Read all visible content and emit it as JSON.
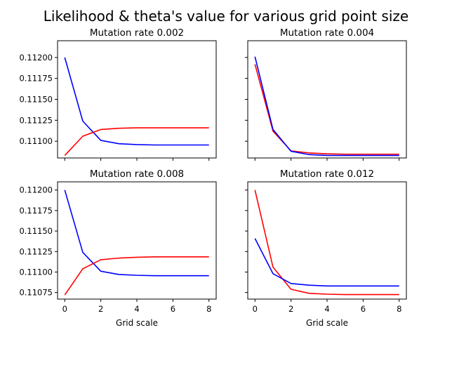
{
  "figure": {
    "title": "Likelihood & theta's value for various grid point size"
  },
  "chart_data": [
    {
      "type": "line",
      "title": "Mutation rate 0.002",
      "xlabel": "",
      "ylabel": "",
      "x": [
        0,
        1,
        2,
        3,
        4,
        5,
        6,
        7,
        8
      ],
      "xticks": [
        0,
        2,
        4,
        6,
        8
      ],
      "xlim": [
        -0.4,
        8.4
      ],
      "ylim": [
        1.1108,
        1.1122
      ],
      "yticks": [
        "0.11100",
        "0.11125",
        "0.11150",
        "0.11175",
        "0.11200"
      ],
      "ytick_values": [
        1.111,
        1.11125,
        1.1115,
        1.11175,
        1.112
      ],
      "show_ytick_labels": true,
      "show_xtick_labels": false,
      "series": [
        {
          "color": "#0000ff",
          "values": [
            1.112,
            1.11124,
            1.11101,
            1.11097,
            1.11096,
            1.110955,
            1.110955,
            1.110955,
            1.110955
          ]
        },
        {
          "color": "#ff0000",
          "values": [
            1.11083,
            1.11106,
            1.11114,
            1.111155,
            1.11116,
            1.11116,
            1.11116,
            1.11116,
            1.11116
          ]
        }
      ]
    },
    {
      "type": "line",
      "title": "Mutation rate 0.004",
      "xlabel": "",
      "ylabel": "",
      "x": [
        0,
        1,
        2,
        3,
        4,
        5,
        6,
        7,
        8
      ],
      "xticks": [
        0,
        2,
        4,
        6,
        8
      ],
      "xlim": [
        -0.4,
        8.4
      ],
      "ylim": [
        1.1108,
        1.1122
      ],
      "yticks": [
        "",
        "",
        "",
        "",
        ""
      ],
      "ytick_values": [
        1.111,
        1.11125,
        1.1115,
        1.11175,
        1.112
      ],
      "show_ytick_labels": false,
      "show_xtick_labels": false,
      "series": [
        {
          "color": "#ff0000",
          "values": [
            1.11192,
            1.11112,
            1.110885,
            1.11086,
            1.11085,
            1.110845,
            1.110845,
            1.110845,
            1.110845
          ]
        },
        {
          "color": "#0000ff",
          "values": [
            1.11201,
            1.11114,
            1.11088,
            1.11084,
            1.11083,
            1.11083,
            1.11083,
            1.11083,
            1.11083
          ]
        }
      ]
    },
    {
      "type": "line",
      "title": "Mutation rate 0.008",
      "xlabel": "Grid scale",
      "ylabel": "",
      "x": [
        0,
        1,
        2,
        3,
        4,
        5,
        6,
        7,
        8
      ],
      "xticks": [
        0,
        2,
        4,
        6,
        8
      ],
      "xlim": [
        -0.4,
        8.4
      ],
      "ylim": [
        1.11067,
        1.1121
      ],
      "yticks": [
        "0.11075",
        "0.11100",
        "0.11125",
        "0.11150",
        "0.11175",
        "0.11200"
      ],
      "ytick_values": [
        1.11075,
        1.111,
        1.11125,
        1.1115,
        1.11175,
        1.112
      ],
      "show_ytick_labels": true,
      "show_xtick_labels": true,
      "series": [
        {
          "color": "#0000ff",
          "values": [
            1.112,
            1.11124,
            1.11101,
            1.11097,
            1.11096,
            1.110955,
            1.110955,
            1.110955,
            1.110955
          ]
        },
        {
          "color": "#ff0000",
          "values": [
            1.11072,
            1.11104,
            1.11115,
            1.11117,
            1.11118,
            1.111185,
            1.111185,
            1.111185,
            1.111185
          ]
        }
      ]
    },
    {
      "type": "line",
      "title": "Mutation rate 0.012",
      "xlabel": "Grid scale",
      "ylabel": "",
      "x": [
        0,
        1,
        2,
        3,
        4,
        5,
        6,
        7,
        8
      ],
      "xticks": [
        0,
        2,
        4,
        6,
        8
      ],
      "xlim": [
        -0.4,
        8.4
      ],
      "ylim": [
        1.11067,
        1.1121
      ],
      "yticks": [
        "",
        "",
        "",
        "",
        "",
        ""
      ],
      "ytick_values": [
        1.11075,
        1.111,
        1.11125,
        1.1115,
        1.11175,
        1.112
      ],
      "show_ytick_labels": false,
      "show_xtick_labels": true,
      "series": [
        {
          "color": "#ff0000",
          "values": [
            1.112,
            1.11106,
            1.11079,
            1.11074,
            1.11073,
            1.110725,
            1.110725,
            1.110725,
            1.110725
          ]
        },
        {
          "color": "#0000ff",
          "values": [
            1.11141,
            1.11098,
            1.11086,
            1.11084,
            1.11083,
            1.11083,
            1.11083,
            1.11083,
            1.11083
          ]
        }
      ]
    }
  ]
}
